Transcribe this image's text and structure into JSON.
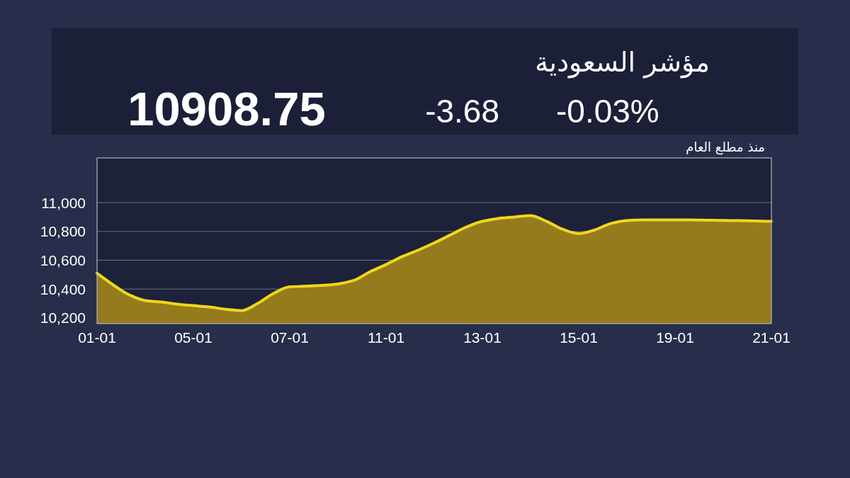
{
  "chart_data": {
    "type": "area",
    "title": "مؤشر السعودية",
    "subtitle": "منذ مطلع العام",
    "annotations": [
      "10908.75",
      "-3.68",
      "-0.03%"
    ],
    "categories": [
      "01-01",
      null,
      null,
      null,
      null,
      null,
      "05-01",
      null,
      null,
      null,
      null,
      null,
      "07-01",
      null,
      null,
      null,
      null,
      null,
      "11-01",
      null,
      null,
      null,
      null,
      null,
      "13-01",
      null,
      null,
      null,
      null,
      null,
      "15-01",
      null,
      null,
      null,
      null,
      null,
      "19-01",
      null,
      null,
      null,
      null,
      null,
      "21-01"
    ],
    "series": [
      {
        "color": "#efd71c",
        "values": [
          10510,
          10430,
          10360,
          10320,
          10310,
          10295,
          10285,
          10275,
          10260,
          10250,
          10300,
          10370,
          10415,
          10420,
          10425,
          10435,
          10460,
          10520,
          10570,
          10625,
          10670,
          10720,
          10775,
          10830,
          10870,
          10890,
          10900,
          10910,
          10870,
          10815,
          10785,
          10810,
          10855,
          10875,
          10880,
          10880,
          10880,
          10880,
          10878,
          10876,
          10875,
          10872,
          10870
        ]
      }
    ],
    "ylim": [
      10160,
      11310
    ],
    "yticks": [
      {
        "value": 10200,
        "label": "10,200"
      },
      {
        "value": 10400,
        "label": "10,400"
      },
      {
        "value": 10600,
        "label": "10,600"
      },
      {
        "value": 10800,
        "label": "10,800"
      },
      {
        "value": 11000,
        "label": "11,000"
      }
    ],
    "grid": "y"
  }
}
